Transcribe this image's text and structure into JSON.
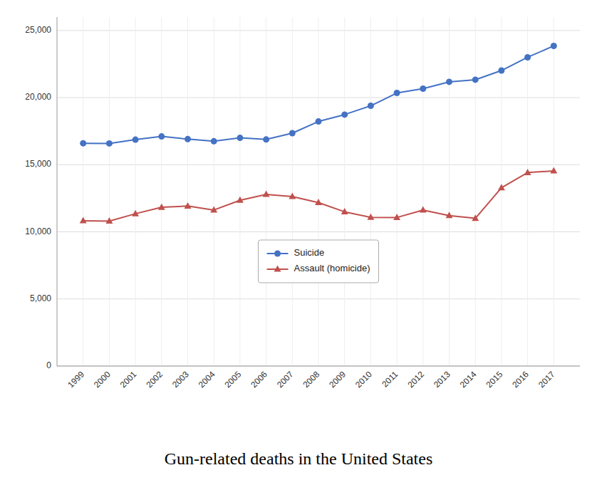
{
  "chart_data": {
    "type": "line",
    "title": "Gun-related deaths in the United States",
    "x": [
      1999,
      2000,
      2001,
      2002,
      2003,
      2004,
      2005,
      2006,
      2007,
      2008,
      2009,
      2010,
      2011,
      2012,
      2013,
      2014,
      2015,
      2016,
      2017
    ],
    "series": [
      {
        "name": "Suicide",
        "color": "#4472C4",
        "marker": "circle",
        "values": [
          16599,
          16586,
          16869,
          17108,
          16907,
          16750,
          17002,
          16883,
          17352,
          18223,
          18735,
          19392,
          20347,
          20666,
          21175,
          21334,
          22018,
          23005,
          23854
        ]
      },
      {
        "name": "Assault (homicide)",
        "color": "#C0504D",
        "marker": "triangle",
        "values": [
          10828,
          10801,
          11348,
          11829,
          11920,
          11624,
          12352,
          12791,
          12632,
          12179,
          11493,
          11078,
          11068,
          11622,
          11208,
          11008,
          13286,
          14415,
          14542
        ]
      }
    ],
    "xlim": [
      1998,
      2018
    ],
    "xticks": [
      1999,
      2000,
      2001,
      2002,
      2003,
      2004,
      2005,
      2006,
      2007,
      2008,
      2009,
      2010,
      2011,
      2012,
      2013,
      2014,
      2015,
      2016,
      2017
    ],
    "ylim": [
      0,
      26000
    ],
    "yticks": [
      0,
      {
        "value": 5000,
        "label": "5,000"
      },
      {
        "value": 10000,
        "label": "10,000"
      },
      {
        "value": 15000,
        "label": "15,000"
      },
      {
        "value": 20000,
        "label": "20,000"
      },
      {
        "value": 25000,
        "label": "25,000"
      }
    ],
    "grid": true,
    "legend": "lower center"
  }
}
